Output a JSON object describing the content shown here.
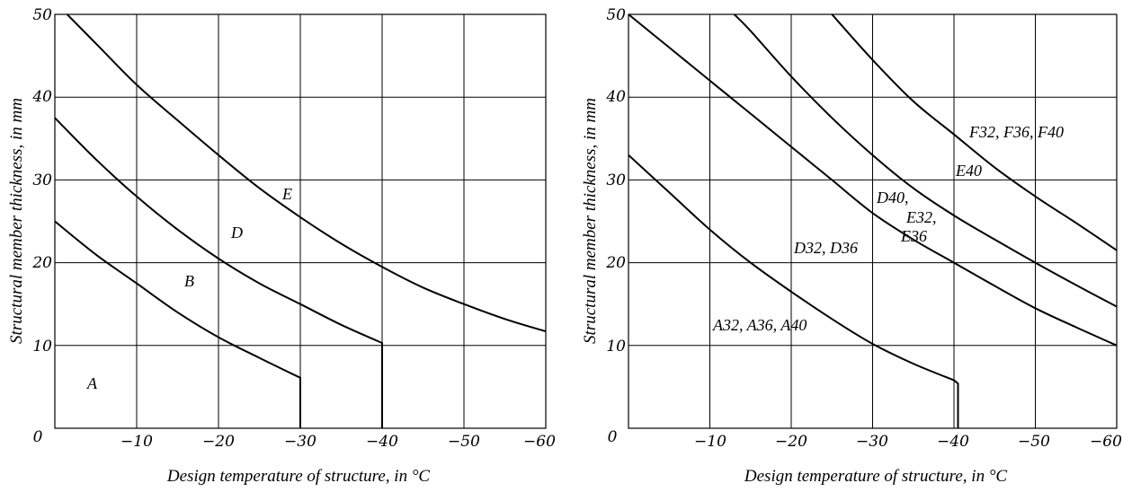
{
  "chart_data": [
    {
      "type": "line",
      "xlabel": "Design temperature of structure, in °C",
      "ylabel": "Structural member thickness, in mm",
      "xlim": [
        0,
        -60
      ],
      "ylim": [
        0,
        50
      ],
      "grid": true,
      "xticks": [
        "0",
        "−10",
        "−20",
        "−30",
        "−40",
        "−50",
        "−60"
      ],
      "yticks": [
        "10",
        "20",
        "30",
        "40",
        "50"
      ],
      "series": [
        {
          "points": [
            [
              0,
              25
            ],
            [
              -5,
              21
            ],
            [
              -10,
              17.5
            ],
            [
              -15,
              14
            ],
            [
              -20,
              11
            ],
            [
              -25,
              8.5
            ],
            [
              -30,
              6.1
            ],
            [
              -30,
              0
            ]
          ]
        },
        {
          "points": [
            [
              0,
              37.5
            ],
            [
              -5,
              32.5
            ],
            [
              -10,
              28
            ],
            [
              -15,
              24
            ],
            [
              -20,
              20.5
            ],
            [
              -25,
              17.5
            ],
            [
              -30,
              15
            ],
            [
              -35,
              12.5
            ],
            [
              -40,
              10.3
            ],
            [
              -40,
              0
            ]
          ]
        },
        {
          "points": [
            [
              -1.5,
              50
            ],
            [
              -5,
              46.5
            ],
            [
              -10,
              41.5
            ],
            [
              -15,
              37.2
            ],
            [
              -20,
              33
            ],
            [
              -25,
              29
            ],
            [
              -30,
              25.5
            ],
            [
              -35,
              22.3
            ],
            [
              -40,
              19.5
            ],
            [
              -45,
              17
            ],
            [
              -50,
              15
            ],
            [
              -55,
              13.2
            ],
            [
              -60,
              11.7
            ]
          ]
        }
      ],
      "annotations": [
        "A",
        "B",
        "D",
        "E"
      ]
    },
    {
      "type": "line",
      "xlabel": "Design temperature of structure, in °C",
      "ylabel": "Structural member thickness, in mm",
      "xlim": [
        0,
        -60
      ],
      "ylim": [
        0,
        50
      ],
      "grid": true,
      "xticks": [
        "0",
        "−10",
        "−20",
        "−30",
        "−40",
        "−50",
        "−60"
      ],
      "yticks": [
        "10",
        "20",
        "30",
        "40",
        "50"
      ],
      "series": [
        {
          "name": "A32, A36, A40",
          "points": [
            [
              0,
              33
            ],
            [
              -5,
              28.5
            ],
            [
              -10,
              24
            ],
            [
              -15,
              20
            ],
            [
              -20,
              16.5
            ],
            [
              -25,
              13.2
            ],
            [
              -30,
              10.2
            ],
            [
              -35,
              7.8
            ],
            [
              -40,
              5.8
            ],
            [
              -40.5,
              5.4
            ],
            [
              -40.5,
              0
            ]
          ]
        },
        {
          "name": "D32, D36",
          "points": [
            [
              0,
              50
            ],
            [
              -5,
              46
            ],
            [
              -10,
              42
            ],
            [
              -15,
              38
            ],
            [
              -20,
              34
            ],
            [
              -25,
              30
            ],
            [
              -30,
              26
            ],
            [
              -35,
              22.8
            ],
            [
              -40,
              20
            ],
            [
              -45,
              17.2
            ],
            [
              -50,
              14.5
            ],
            [
              -55,
              12.2
            ],
            [
              -60,
              10
            ]
          ]
        },
        {
          "name": "D40, E32, E36",
          "points": [
            [
              -13,
              50
            ],
            [
              -15,
              48
            ],
            [
              -20,
              42.5
            ],
            [
              -25,
              37.5
            ],
            [
              -30,
              33
            ],
            [
              -35,
              29
            ],
            [
              -40,
              25.7
            ],
            [
              -45,
              22.8
            ],
            [
              -50,
              20
            ],
            [
              -55,
              17.3
            ],
            [
              -60,
              14.7
            ]
          ]
        },
        {
          "name": "E40, F32, F36, F40",
          "points": [
            [
              -25,
              50
            ],
            [
              -30,
              44.5
            ],
            [
              -35,
              39.5
            ],
            [
              -40,
              35.5
            ],
            [
              -45,
              31.5
            ],
            [
              -50,
              28
            ],
            [
              -55,
              24.8
            ],
            [
              -60,
              21.5
            ]
          ]
        }
      ],
      "annotations": [
        "F32, F36, F40",
        "E40",
        "D40,",
        "E32,",
        "E36",
        "D32, D36",
        "A32, A36, A40"
      ]
    }
  ]
}
